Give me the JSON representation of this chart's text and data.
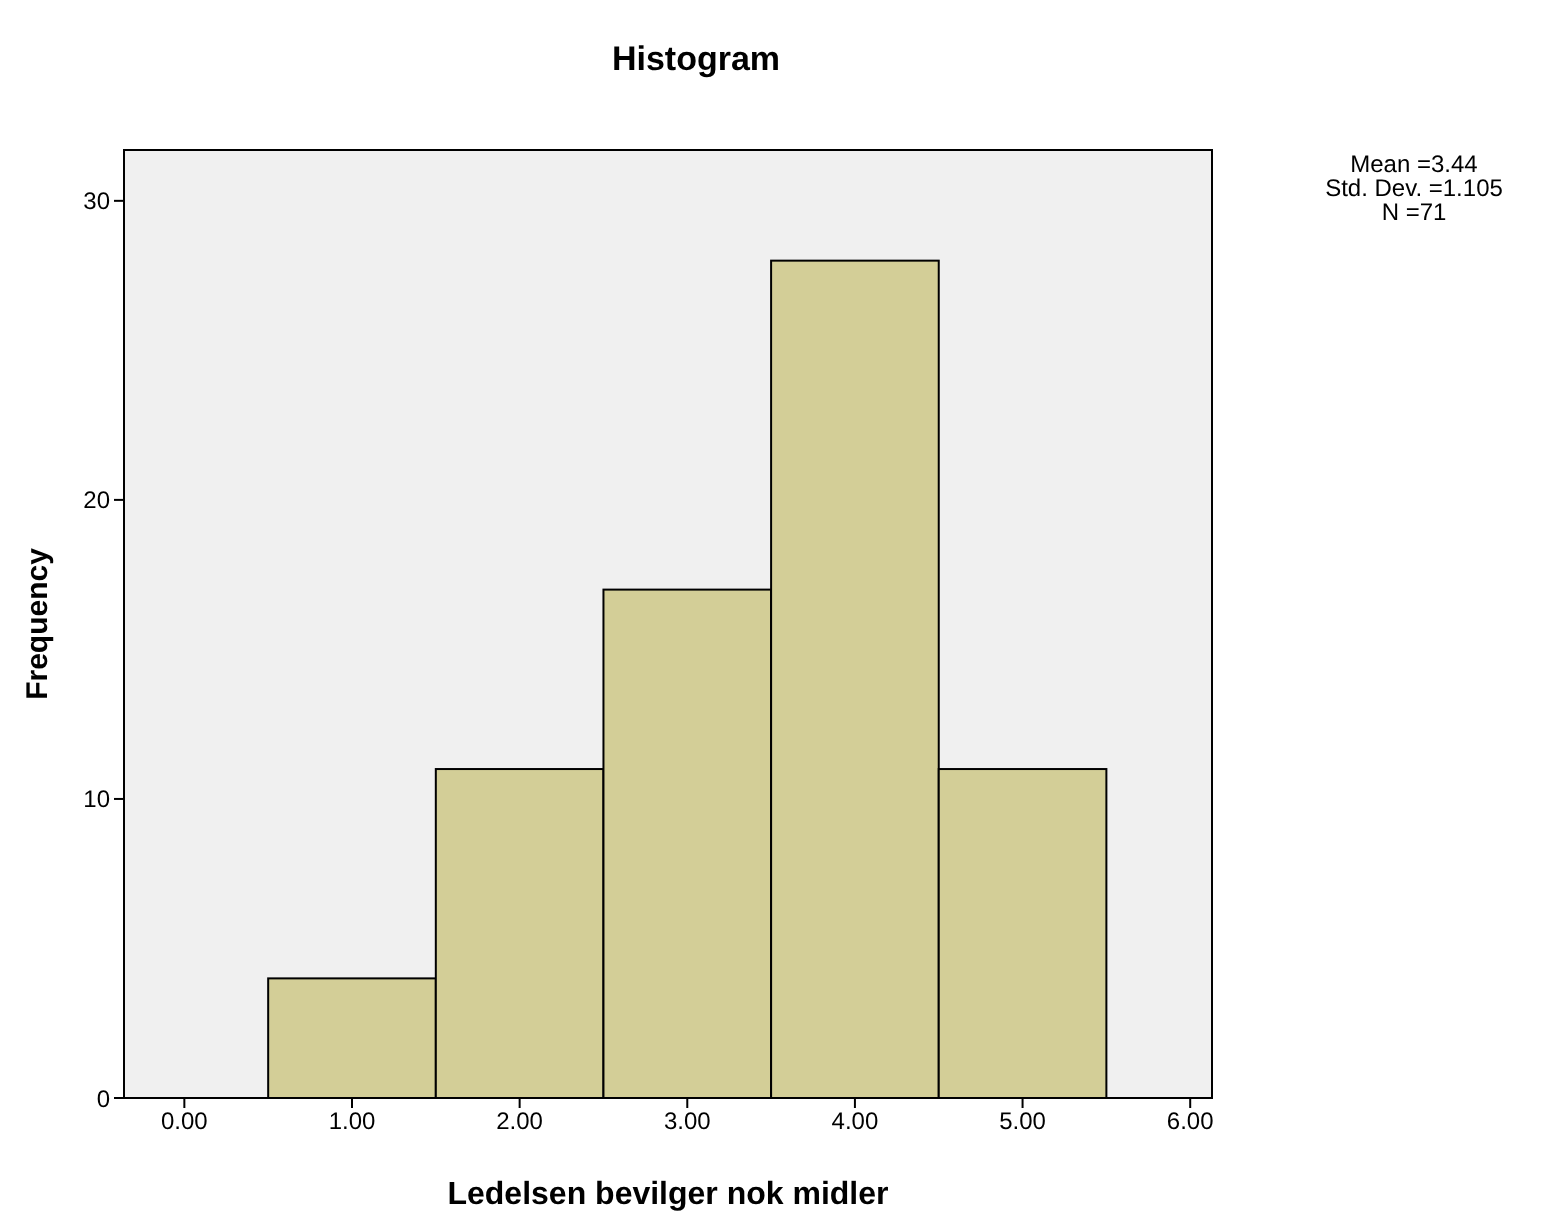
{
  "chart_data": {
    "type": "histogram",
    "title": "Histogram",
    "xlabel": "Ledelsen bevilger nok midler",
    "ylabel": "Frequency",
    "bins": [
      0.5,
      1.5,
      2.5,
      3.5,
      4.5,
      5.5
    ],
    "values": [
      4,
      11,
      17,
      28,
      11
    ],
    "color": "#d3ce97",
    "xlim": [
      -0.36,
      6.13
    ],
    "xticks": [
      {
        "value": 0,
        "label": "0.00"
      },
      {
        "value": 1,
        "label": "1.00"
      },
      {
        "value": 2,
        "label": "2.00"
      },
      {
        "value": 3,
        "label": "3.00"
      },
      {
        "value": 4,
        "label": "4.00"
      },
      {
        "value": 5,
        "label": "5.00"
      },
      {
        "value": 6,
        "label": "6.00"
      }
    ],
    "ylim": [
      0,
      31.7
    ],
    "yticks": [
      0,
      10,
      20,
      30
    ],
    "annotations": [
      "Mean =3.44",
      "Std. Dev. =1.105",
      "N =71"
    ]
  }
}
